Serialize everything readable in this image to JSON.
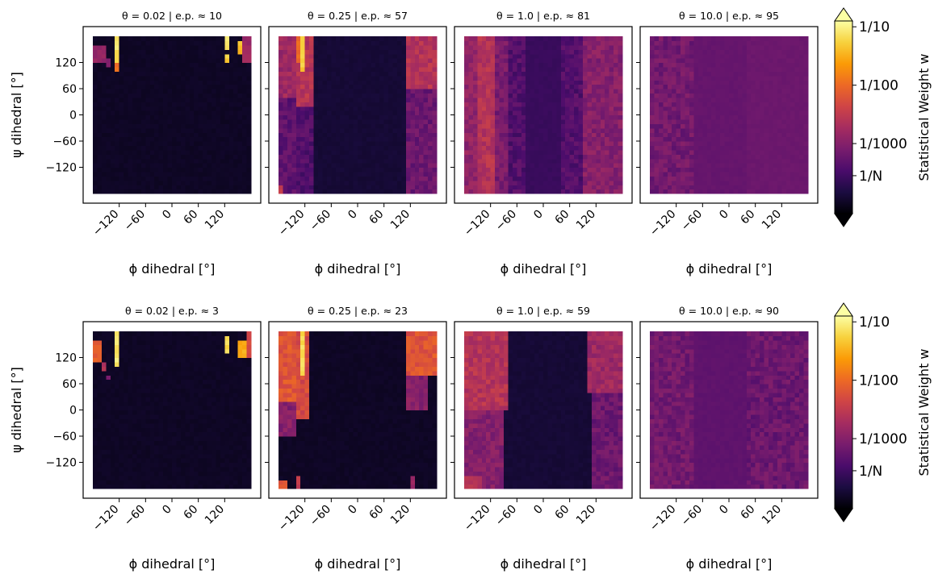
{
  "colors": {
    "background": "#ffffff",
    "axis": "#000000",
    "colormap": "inferno",
    "colormap_stops": [
      "#000004",
      "#1b0c41",
      "#4a0c6b",
      "#781c6d",
      "#a52c60",
      "#cf4446",
      "#ed6925",
      "#fb9b06",
      "#f7d13d",
      "#fcffa4"
    ]
  },
  "chart_data": [
    {
      "type": "heatmap",
      "row": 0,
      "col": 0,
      "title": "θ = 0.02 | e.p. ≈ 10",
      "xlabel": "ϕ dihedral [°]",
      "ylabel": "ψ dihedral [°]",
      "xlim": [
        -180,
        180
      ],
      "ylim": [
        -180,
        180
      ],
      "bins": 36,
      "xticks": [
        -120,
        -60,
        0,
        60,
        120
      ],
      "yticks": [
        -120,
        -60,
        0,
        60,
        120
      ],
      "log_weights": {
        "background": -4.0,
        "column_profiles": [],
        "hotspots": [
          {
            "phi": [
              -127,
              -117
            ],
            "psi": [
              150,
              180
            ],
            "lw": -1.1
          },
          {
            "phi": [
              -127,
              -117
            ],
            "psi": [
              120,
              150
            ],
            "lw": -1.3
          },
          {
            "phi": [
              -127,
              -117
            ],
            "psi": [
              100,
              120
            ],
            "lw": -2.0
          },
          {
            "phi": [
              -180,
              -150
            ],
            "psi": [
              120,
              160
            ],
            "lw": -2.9
          },
          {
            "phi": [
              -150,
              -137
            ],
            "psi": [
              110,
              130
            ],
            "lw": -3.1
          },
          {
            "phi": [
              120,
              132
            ],
            "psi": [
              150,
              180
            ],
            "lw": -1.1
          },
          {
            "phi": [
              120,
              132
            ],
            "psi": [
              125,
              145
            ],
            "lw": -1.3
          },
          {
            "phi": [
              150,
              162
            ],
            "psi": [
              140,
              170
            ],
            "lw": -1.4
          },
          {
            "phi": [
              162,
              180
            ],
            "psi": [
              120,
              180
            ],
            "lw": -2.8
          }
        ]
      }
    },
    {
      "type": "heatmap",
      "row": 0,
      "col": 1,
      "title": "θ = 0.25 | e.p. ≈ 57",
      "xlabel": "ϕ dihedral [°]",
      "ylabel": "",
      "xlim": [
        -180,
        180
      ],
      "ylim": [
        -180,
        180
      ],
      "bins": 36,
      "xticks": [
        -120,
        -60,
        0,
        60,
        120
      ],
      "yticks": [
        -120,
        -60,
        0,
        60,
        120
      ],
      "log_weights": {
        "background": -3.9,
        "column_profiles": [
          {
            "phi": [
              -180,
              -140
            ],
            "psi": [
              40,
              180
            ],
            "lw": -2.8
          },
          {
            "phi": [
              -180,
              -140
            ],
            "psi": [
              -180,
              40
            ],
            "lw": -3.3
          },
          {
            "phi": [
              -140,
              -100
            ],
            "psi": [
              20,
              180
            ],
            "lw": -2.6
          },
          {
            "phi": [
              -140,
              -100
            ],
            "psi": [
              -180,
              20
            ],
            "lw": -3.4
          },
          {
            "phi": [
              110,
              180
            ],
            "psi": [
              60,
              180
            ],
            "lw": -2.6
          },
          {
            "phi": [
              110,
              180
            ],
            "psi": [
              -180,
              60
            ],
            "lw": -3.2
          }
        ],
        "hotspots": [
          {
            "phi": [
              -127,
              -117
            ],
            "psi": [
              100,
              180
            ],
            "lw": -1.3
          },
          {
            "phi": [
              -140,
              -130
            ],
            "psi": [
              120,
              180
            ],
            "lw": -2.0
          },
          {
            "phi": [
              -180,
              -172
            ],
            "psi": [
              -180,
              -160
            ],
            "lw": -2.5
          }
        ]
      }
    },
    {
      "type": "heatmap",
      "row": 0,
      "col": 2,
      "title": "θ = 1.0 | e.p. ≈ 81",
      "xlabel": "ϕ dihedral [°]",
      "ylabel": "",
      "xlim": [
        -180,
        180
      ],
      "ylim": [
        -180,
        180
      ],
      "bins": 36,
      "xticks": [
        -120,
        -60,
        0,
        60,
        120
      ],
      "yticks": [
        -120,
        -60,
        0,
        60,
        120
      ],
      "log_weights": {
        "background": -3.6,
        "column_profiles": [
          {
            "phi": [
              -180,
              -150
            ],
            "psi": [
              -180,
              180
            ],
            "lw": -2.9
          },
          {
            "phi": [
              -150,
              -110
            ],
            "psi": [
              -180,
              180
            ],
            "lw": -2.6
          },
          {
            "phi": [
              -110,
              -80
            ],
            "psi": [
              -180,
              180
            ],
            "lw": -3.1
          },
          {
            "phi": [
              -80,
              -40
            ],
            "psi": [
              -180,
              180
            ],
            "lw": -3.4
          },
          {
            "phi": [
              40,
              90
            ],
            "psi": [
              -180,
              180
            ],
            "lw": -3.4
          },
          {
            "phi": [
              90,
              180
            ],
            "psi": [
              -180,
              180
            ],
            "lw": -3.0
          }
        ],
        "hotspots": []
      }
    },
    {
      "type": "heatmap",
      "row": 0,
      "col": 3,
      "title": "θ = 10.0 | e.p. ≈ 95",
      "xlabel": "ϕ dihedral [°]",
      "ylabel": "",
      "xlim": [
        -180,
        180
      ],
      "ylim": [
        -180,
        180
      ],
      "bins": 36,
      "xticks": [
        -120,
        -60,
        0,
        60,
        120
      ],
      "yticks": [
        -120,
        -60,
        0,
        60,
        120
      ],
      "log_weights": {
        "background": -3.25,
        "column_profiles": [
          {
            "phi": [
              -180,
              -80
            ],
            "psi": [
              -180,
              180
            ],
            "lw": -3.15
          },
          {
            "phi": [
              -80,
              40
            ],
            "psi": [
              -180,
              180
            ],
            "lw": -3.3
          },
          {
            "phi": [
              40,
              180
            ],
            "psi": [
              -180,
              180
            ],
            "lw": -3.2
          }
        ],
        "hotspots": []
      }
    },
    {
      "type": "heatmap",
      "row": 1,
      "col": 0,
      "title": "θ = 0.02 | e.p. ≈ 3",
      "xlabel": "ϕ dihedral [°]",
      "ylabel": "ψ dihedral [°]",
      "xlim": [
        -180,
        180
      ],
      "ylim": [
        -180,
        180
      ],
      "bins": 36,
      "xticks": [
        -120,
        -60,
        0,
        60,
        120
      ],
      "yticks": [
        -120,
        -60,
        0,
        60,
        120
      ],
      "log_weights": {
        "background": -4.0,
        "column_profiles": [],
        "hotspots": [
          {
            "phi": [
              -127,
              -117
            ],
            "psi": [
              100,
              180
            ],
            "lw": -1.1
          },
          {
            "phi": [
              -180,
              -155
            ],
            "psi": [
              110,
              160
            ],
            "lw": -2.1
          },
          {
            "phi": [
              -155,
              -145
            ],
            "psi": [
              90,
              110
            ],
            "lw": -2.6
          },
          {
            "phi": [
              -150,
              -140
            ],
            "psi": [
              70,
              85
            ],
            "lw": -3.1
          },
          {
            "phi": [
              120,
              132
            ],
            "psi": [
              130,
              170
            ],
            "lw": -1.2
          },
          {
            "phi": [
              155,
              170
            ],
            "psi": [
              120,
              160
            ],
            "lw": -1.5
          },
          {
            "phi": [
              170,
              180
            ],
            "psi": [
              120,
              180
            ],
            "lw": -2.3
          }
        ]
      }
    },
    {
      "type": "heatmap",
      "row": 1,
      "col": 1,
      "title": "θ = 0.25 | e.p. ≈ 23",
      "xlabel": "ϕ dihedral [°]",
      "ylabel": "",
      "xlim": [
        -180,
        180
      ],
      "ylim": [
        -180,
        180
      ],
      "bins": 36,
      "xticks": [
        -120,
        -60,
        0,
        60,
        120
      ],
      "yticks": [
        -120,
        -60,
        0,
        60,
        120
      ],
      "log_weights": {
        "background": -4.0,
        "column_profiles": [
          {
            "phi": [
              -180,
              -140
            ],
            "psi": [
              20,
              180
            ],
            "lw": -2.2
          },
          {
            "phi": [
              -180,
              -140
            ],
            "psi": [
              -60,
              20
            ],
            "lw": -3.0
          },
          {
            "phi": [
              -140,
              -110
            ],
            "psi": [
              -20,
              180
            ],
            "lw": -2.3
          },
          {
            "phi": [
              110,
              180
            ],
            "psi": [
              80,
              180
            ],
            "lw": -2.2
          },
          {
            "phi": [
              110,
              160
            ],
            "psi": [
              0,
              80
            ],
            "lw": -3.0
          }
        ],
        "hotspots": [
          {
            "phi": [
              -127,
              -117
            ],
            "psi": [
              80,
              180
            ],
            "lw": -1.2
          },
          {
            "phi": [
              -180,
              -160
            ],
            "psi": [
              -180,
              -160
            ],
            "lw": -2.2
          },
          {
            "phi": [
              -135,
              -125
            ],
            "psi": [
              -180,
              -150
            ],
            "lw": -2.5
          },
          {
            "phi": [
              120,
              132
            ],
            "psi": [
              -180,
              -150
            ],
            "lw": -2.8
          }
        ]
      }
    },
    {
      "type": "heatmap",
      "row": 1,
      "col": 2,
      "title": "θ = 1.0 | e.p. ≈ 59",
      "xlabel": "ϕ dihedral [°]",
      "ylabel": "",
      "xlim": [
        -180,
        180
      ],
      "ylim": [
        -180,
        180
      ],
      "bins": 36,
      "xticks": [
        -120,
        -60,
        0,
        60,
        120
      ],
      "yticks": [
        -120,
        -60,
        0,
        60,
        120
      ],
      "log_weights": {
        "background": -3.9,
        "column_profiles": [
          {
            "phi": [
              -180,
              -80
            ],
            "psi": [
              0,
              180
            ],
            "lw": -2.6
          },
          {
            "phi": [
              -180,
              -90
            ],
            "psi": [
              -180,
              0
            ],
            "lw": -3.0
          },
          {
            "phi": [
              100,
              180
            ],
            "psi": [
              40,
              180
            ],
            "lw": -2.8
          },
          {
            "phi": [
              110,
              180
            ],
            "psi": [
              -180,
              40
            ],
            "lw": -3.2
          }
        ],
        "hotspots": [
          {
            "phi": [
              -180,
              -140
            ],
            "psi": [
              -180,
              -150
            ],
            "lw": -2.6
          }
        ]
      }
    },
    {
      "type": "heatmap",
      "row": 1,
      "col": 3,
      "title": "θ = 10.0 | e.p. ≈ 90",
      "xlabel": "ϕ dihedral [°]",
      "ylabel": "",
      "xlim": [
        -180,
        180
      ],
      "ylim": [
        -180,
        180
      ],
      "bins": 36,
      "xticks": [
        -120,
        -60,
        0,
        60,
        120
      ],
      "yticks": [
        -120,
        -60,
        0,
        60,
        120
      ],
      "log_weights": {
        "background": -3.3,
        "column_profiles": [
          {
            "phi": [
              -180,
              -80
            ],
            "psi": [
              -180,
              180
            ],
            "lw": -3.15
          },
          {
            "phi": [
              -80,
              40
            ],
            "psi": [
              -180,
              180
            ],
            "lw": -3.4
          },
          {
            "phi": [
              40,
              180
            ],
            "psi": [
              -180,
              180
            ],
            "lw": -3.2
          }
        ],
        "hotspots": []
      }
    }
  ],
  "colorbars": [
    {
      "row": 0,
      "label": "Statistical Weight w",
      "scale": "log",
      "lim": [
        -4.2,
        -0.9
      ],
      "extend": "both",
      "ticks": [
        {
          "value": -1,
          "label": "1/10"
        },
        {
          "value": -2,
          "label": "1/100"
        },
        {
          "value": -3,
          "label": "1/1000"
        },
        {
          "value": -3.55,
          "label": "1/N"
        }
      ]
    },
    {
      "row": 1,
      "label": "Statistical Weight w",
      "scale": "log",
      "lim": [
        -4.2,
        -0.9
      ],
      "extend": "both",
      "ticks": [
        {
          "value": -1,
          "label": "1/10"
        },
        {
          "value": -2,
          "label": "1/100"
        },
        {
          "value": -3,
          "label": "1/1000"
        },
        {
          "value": -3.55,
          "label": "1/N"
        }
      ]
    }
  ]
}
